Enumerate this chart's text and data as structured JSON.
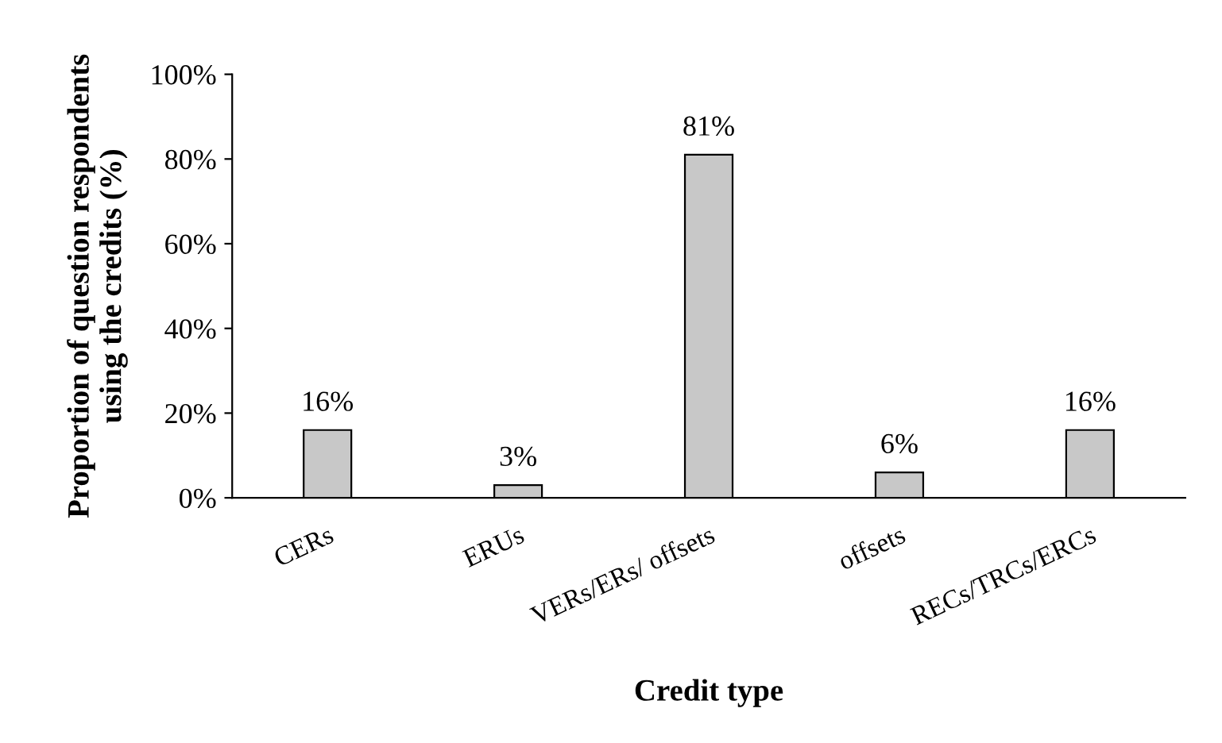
{
  "chart_data": {
    "type": "bar",
    "xlabel": "Credit type",
    "ylabel": "Proportion of question respondents\nusing the credits (%)",
    "categories": [
      "CERs",
      "ERUs",
      "VERs/ERs/ offsets",
      "offsets",
      "RECs/TRCs/ERCs"
    ],
    "values": [
      16,
      3,
      81,
      6,
      16
    ],
    "color": "#c8c8c8",
    "value_labels": [
      "16%",
      "3%",
      "81%",
      "6%",
      "16%"
    ],
    "ylim": [
      0,
      100
    ],
    "yticks": [
      {
        "value": 0,
        "label": "0%"
      },
      {
        "value": 20,
        "label": "20%"
      },
      {
        "value": 40,
        "label": "40%"
      },
      {
        "value": 60,
        "label": "60%"
      },
      {
        "value": 80,
        "label": "80%"
      },
      {
        "value": 100,
        "label": "100%"
      }
    ],
    "grid": false
  }
}
